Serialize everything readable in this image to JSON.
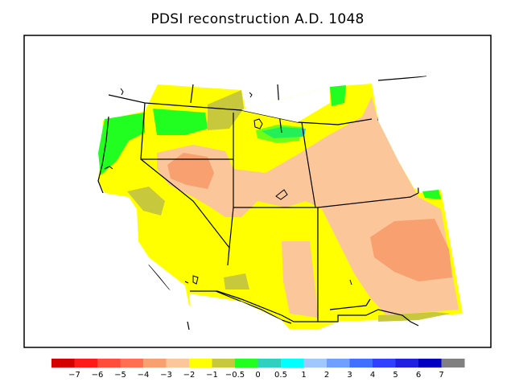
{
  "title": "PDSI reconstruction A.D. 1048",
  "legend": {
    "bins": [
      {
        "color": "#d40000"
      },
      {
        "color": "#ff1a1a"
      },
      {
        "color": "#ff4d3a"
      },
      {
        "color": "#ff7050"
      },
      {
        "color": "#f8a070"
      },
      {
        "color": "#fbc79a"
      },
      {
        "color": "#ffff00"
      },
      {
        "color": "#c8c83c"
      },
      {
        "color": "#20ff20"
      },
      {
        "color": "#30d0c0"
      },
      {
        "color": "#00ffff"
      },
      {
        "color": "#a0c8ff"
      },
      {
        "color": "#70a0ff"
      },
      {
        "color": "#4070ff"
      },
      {
        "color": "#3040ff"
      },
      {
        "color": "#2020e0"
      },
      {
        "color": "#0000c0"
      },
      {
        "color": "#808080"
      }
    ],
    "tick_labels": [
      "−7",
      "−6",
      "−5",
      "−4",
      "−3",
      "−2",
      "−1",
      "−0.5",
      "0",
      "0.5",
      "1",
      "2",
      "3",
      "4",
      "5",
      "6",
      "7"
    ]
  },
  "map_fill_colors": {
    "green": "#20ff20",
    "olive": "#c8c83c",
    "yellow": "#ffff00",
    "peach": "#fbc79a",
    "salmon": "#f8a070",
    "teal": "#30d0c0"
  }
}
